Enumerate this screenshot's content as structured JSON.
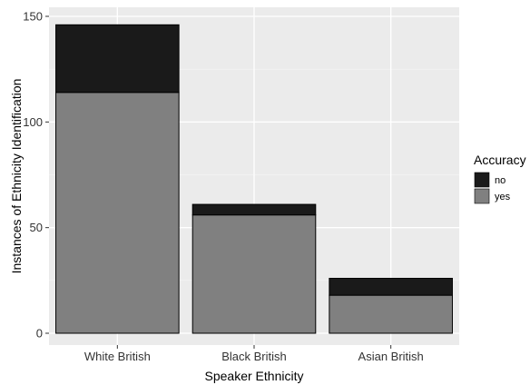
{
  "chart_data": {
    "type": "bar",
    "stacked": true,
    "categories": [
      "White British",
      "Black British",
      "Asian British"
    ],
    "series": [
      {
        "name": "no",
        "values": [
          32,
          5,
          8
        ],
        "color": "#1a1a1a"
      },
      {
        "name": "yes",
        "values": [
          114,
          56,
          18
        ],
        "color": "#808080"
      }
    ],
    "xlabel": "Speaker Ethnicity",
    "ylabel": "Instances of Ethnicity Identification",
    "ylim": [
      0,
      150
    ],
    "yticks": [
      0,
      50,
      100,
      150
    ],
    "grid": true,
    "legend": {
      "title": "Accuracy",
      "placement": "right"
    },
    "panel_color": "#ebebeb"
  }
}
